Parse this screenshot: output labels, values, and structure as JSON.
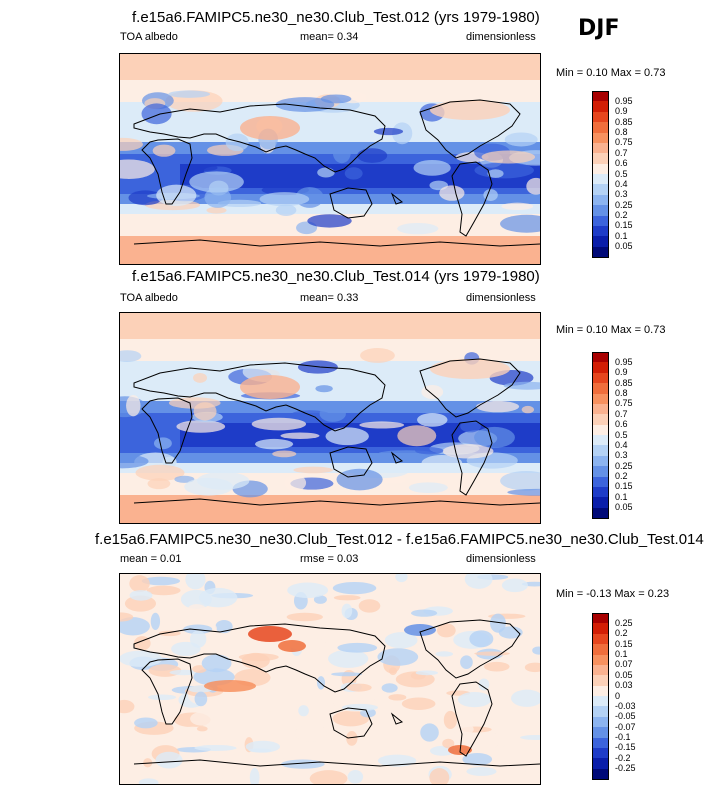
{
  "season": "DJF",
  "panels": [
    {
      "title": "f.e15a6.FAMIPC5.ne30_ne30.Club_Test.012 (yrs 1979-1980)",
      "left_label": "TOA albedo",
      "mean_text": "mean=   0.34",
      "units": "dimensionless",
      "minmax": "Min =   0.10 Max =   0.73",
      "kind": "abs"
    },
    {
      "title": "f.e15a6.FAMIPC5.ne30_ne30.Club_Test.014 (yrs 1979-1980)",
      "left_label": "TOA albedo",
      "mean_text": "mean=   0.33",
      "units": "dimensionless",
      "minmax": "Min =   0.10 Max =   0.73",
      "kind": "abs"
    },
    {
      "title": "f.e15a6.FAMIPC5.ne30_ne30.Club_Test.012 - f.e15a6.FAMIPC5.ne30_ne30.Club_Test.014",
      "left_label": "mean =   0.01",
      "mean_text": "rmse =   0.03",
      "units": "dimensionless",
      "minmax": "Min =  -0.13 Max =   0.23",
      "kind": "diff"
    }
  ],
  "colorbar_abs": {
    "labels": [
      "0.95",
      "0.9",
      "0.85",
      "0.8",
      "0.75",
      "0.7",
      "0.6",
      "0.5",
      "0.4",
      "0.3",
      "0.25",
      "0.2",
      "0.15",
      "0.1",
      "0.05"
    ],
    "colors": [
      "#a80000",
      "#d21e05",
      "#e6461e",
      "#f06e3c",
      "#f7915f",
      "#fab290",
      "#fcd1b8",
      "#fdeee4",
      "#dcebf8",
      "#b4d2f5",
      "#8cb4f0",
      "#6491e6",
      "#3c64dc",
      "#1e3cc8",
      "#0a1eaa",
      "#000a78"
    ]
  },
  "colorbar_diff": {
    "labels": [
      "0.25",
      "0.2",
      "0.15",
      "0.1",
      "0.07",
      "0.05",
      "0.03",
      "0",
      "-0.03",
      "-0.05",
      "-0.07",
      "-0.1",
      "-0.15",
      "-0.2",
      "-0.25"
    ],
    "colors": [
      "#a80000",
      "#d21e05",
      "#e6461e",
      "#f06e3c",
      "#f7915f",
      "#fab290",
      "#fcd1b8",
      "#fdeee4",
      "#dcebf8",
      "#b4d2f5",
      "#8cb4f0",
      "#6491e6",
      "#3c64dc",
      "#1e3cc8",
      "#0a1eaa",
      "#000a78"
    ]
  }
}
